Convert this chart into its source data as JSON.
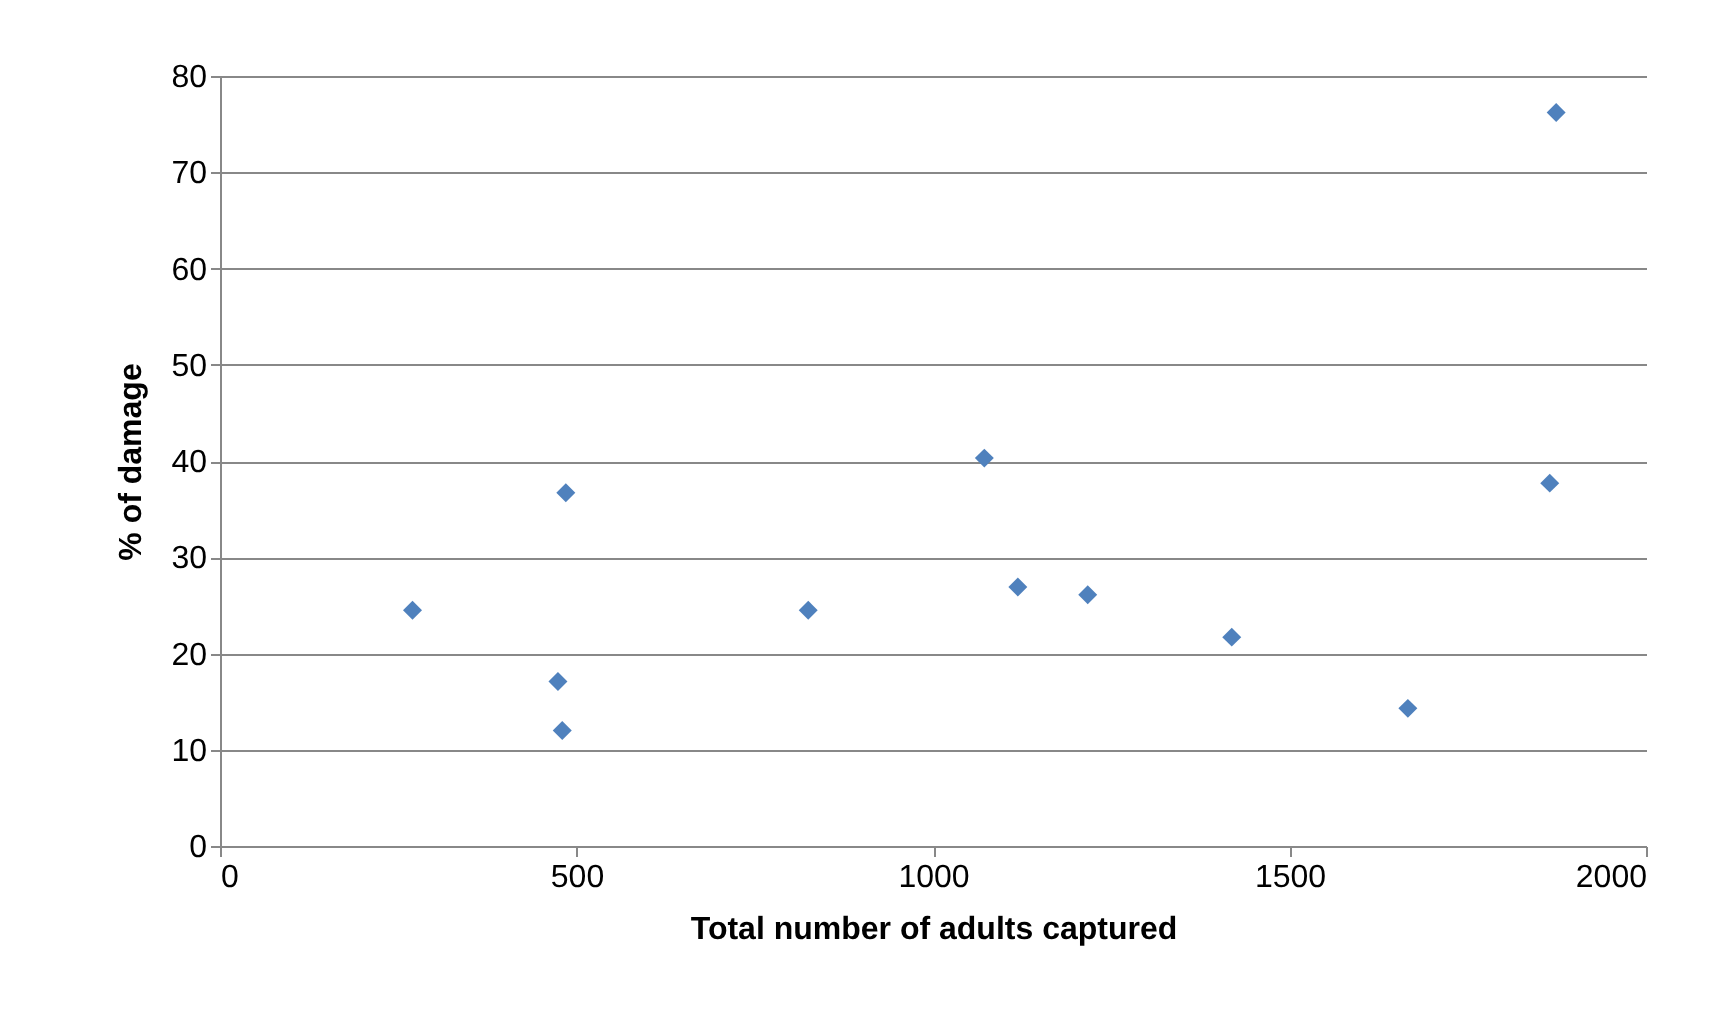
{
  "chart_data": {
    "type": "scatter",
    "xlabel": "Total number of adults captured",
    "ylabel": "% of damage",
    "x": [
      270,
      485,
      474,
      480,
      825,
      1072,
      1119,
      1217,
      1419,
      1666,
      1865,
      1874
    ],
    "series": [
      {
        "color": "#4f81bd",
        "values": [
          24.5,
          36.7,
          17.1,
          12,
          24.5,
          40.3,
          26.9,
          26.1,
          21.7,
          14.3,
          37.7,
          76.2
        ]
      }
    ],
    "xlim": [
      0,
      2000
    ],
    "xticks": [
      0,
      500,
      1000,
      1500,
      2000
    ],
    "ylim": [
      0,
      80
    ],
    "yticks": [
      0,
      10,
      20,
      30,
      40,
      50,
      60,
      70,
      80
    ],
    "grid": "y",
    "marker": "diamond"
  }
}
